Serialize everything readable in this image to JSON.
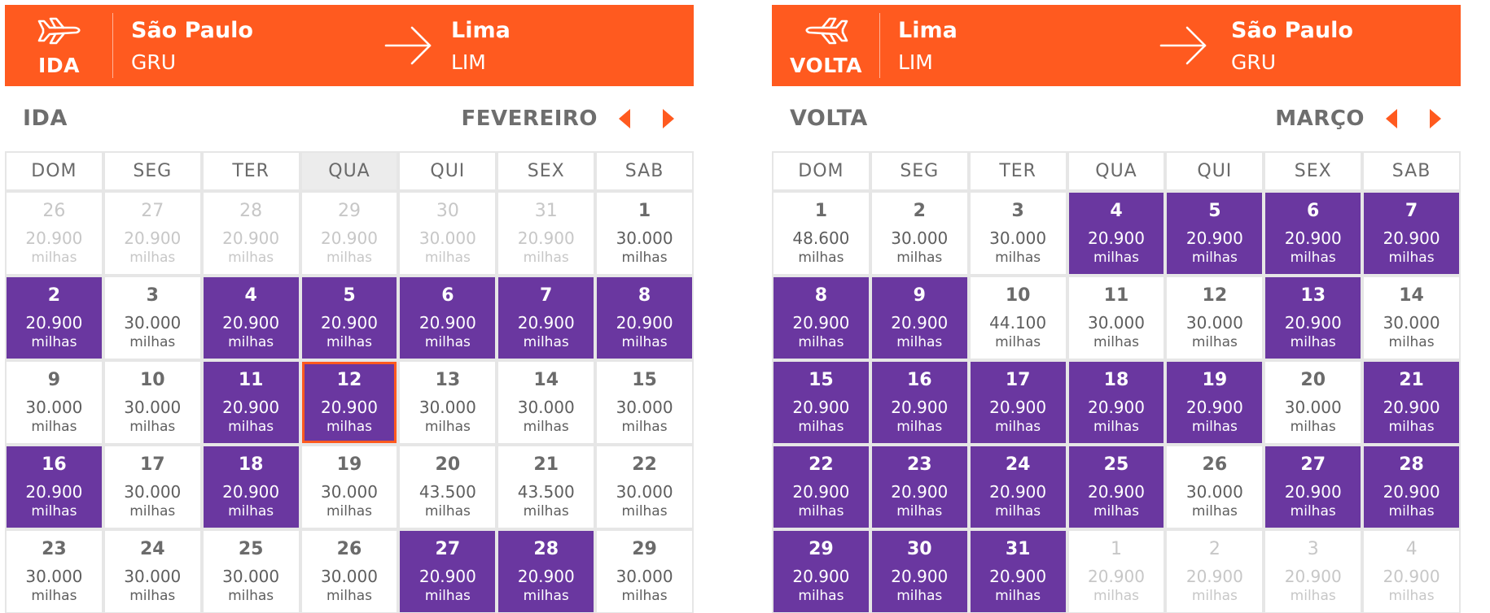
{
  "ida": {
    "direction_label": "IDA",
    "origin": {
      "city": "São Paulo",
      "code": "GRU"
    },
    "destination": {
      "city": "Lima",
      "code": "LIM"
    },
    "section_title": "IDA",
    "month": "FEVEREIRO",
    "weekdays": [
      "DOM",
      "SEG",
      "TER",
      "QUA",
      "QUI",
      "SEX",
      "SAB"
    ],
    "highlight_weekday": "QUA",
    "days": [
      {
        "day": "26",
        "price": "20.900",
        "unit": "milhas",
        "state": "muted"
      },
      {
        "day": "27",
        "price": "20.900",
        "unit": "milhas",
        "state": "muted"
      },
      {
        "day": "28",
        "price": "20.900",
        "unit": "milhas",
        "state": "muted"
      },
      {
        "day": "29",
        "price": "20.900",
        "unit": "milhas",
        "state": "muted"
      },
      {
        "day": "30",
        "price": "30.000",
        "unit": "milhas",
        "state": "muted"
      },
      {
        "day": "31",
        "price": "20.900",
        "unit": "milhas",
        "state": "muted"
      },
      {
        "day": "1",
        "price": "30.000",
        "unit": "milhas",
        "state": "normal"
      },
      {
        "day": "2",
        "price": "20.900",
        "unit": "milhas",
        "state": "promo"
      },
      {
        "day": "3",
        "price": "30.000",
        "unit": "milhas",
        "state": "normal"
      },
      {
        "day": "4",
        "price": "20.900",
        "unit": "milhas",
        "state": "promo"
      },
      {
        "day": "5",
        "price": "20.900",
        "unit": "milhas",
        "state": "promo"
      },
      {
        "day": "6",
        "price": "20.900",
        "unit": "milhas",
        "state": "promo"
      },
      {
        "day": "7",
        "price": "20.900",
        "unit": "milhas",
        "state": "promo"
      },
      {
        "day": "8",
        "price": "20.900",
        "unit": "milhas",
        "state": "promo"
      },
      {
        "day": "9",
        "price": "30.000",
        "unit": "milhas",
        "state": "normal"
      },
      {
        "day": "10",
        "price": "30.000",
        "unit": "milhas",
        "state": "normal"
      },
      {
        "day": "11",
        "price": "20.900",
        "unit": "milhas",
        "state": "promo"
      },
      {
        "day": "12",
        "price": "20.900",
        "unit": "milhas",
        "state": "promo",
        "selected": true
      },
      {
        "day": "13",
        "price": "30.000",
        "unit": "milhas",
        "state": "normal"
      },
      {
        "day": "14",
        "price": "30.000",
        "unit": "milhas",
        "state": "normal"
      },
      {
        "day": "15",
        "price": "30.000",
        "unit": "milhas",
        "state": "normal"
      },
      {
        "day": "16",
        "price": "20.900",
        "unit": "milhas",
        "state": "promo"
      },
      {
        "day": "17",
        "price": "30.000",
        "unit": "milhas",
        "state": "normal"
      },
      {
        "day": "18",
        "price": "20.900",
        "unit": "milhas",
        "state": "promo"
      },
      {
        "day": "19",
        "price": "30.000",
        "unit": "milhas",
        "state": "normal"
      },
      {
        "day": "20",
        "price": "43.500",
        "unit": "milhas",
        "state": "normal"
      },
      {
        "day": "21",
        "price": "43.500",
        "unit": "milhas",
        "state": "normal"
      },
      {
        "day": "22",
        "price": "30.000",
        "unit": "milhas",
        "state": "normal"
      },
      {
        "day": "23",
        "price": "30.000",
        "unit": "milhas",
        "state": "normal"
      },
      {
        "day": "24",
        "price": "30.000",
        "unit": "milhas",
        "state": "normal"
      },
      {
        "day": "25",
        "price": "30.000",
        "unit": "milhas",
        "state": "normal"
      },
      {
        "day": "26",
        "price": "30.000",
        "unit": "milhas",
        "state": "normal"
      },
      {
        "day": "27",
        "price": "20.900",
        "unit": "milhas",
        "state": "promo"
      },
      {
        "day": "28",
        "price": "20.900",
        "unit": "milhas",
        "state": "promo"
      },
      {
        "day": "29",
        "price": "30.000",
        "unit": "milhas",
        "state": "normal"
      }
    ]
  },
  "volta": {
    "direction_label": "VOLTA",
    "origin": {
      "city": "Lima",
      "code": "LIM"
    },
    "destination": {
      "city": "São Paulo",
      "code": "GRU"
    },
    "section_title": "VOLTA",
    "month": "MARÇO",
    "weekdays": [
      "DOM",
      "SEG",
      "TER",
      "QUA",
      "QUI",
      "SEX",
      "SAB"
    ],
    "highlight_weekday": "",
    "days": [
      {
        "day": "1",
        "price": "48.600",
        "unit": "milhas",
        "state": "normal"
      },
      {
        "day": "2",
        "price": "30.000",
        "unit": "milhas",
        "state": "normal"
      },
      {
        "day": "3",
        "price": "30.000",
        "unit": "milhas",
        "state": "normal"
      },
      {
        "day": "4",
        "price": "20.900",
        "unit": "milhas",
        "state": "promo"
      },
      {
        "day": "5",
        "price": "20.900",
        "unit": "milhas",
        "state": "promo"
      },
      {
        "day": "6",
        "price": "20.900",
        "unit": "milhas",
        "state": "promo"
      },
      {
        "day": "7",
        "price": "20.900",
        "unit": "milhas",
        "state": "promo"
      },
      {
        "day": "8",
        "price": "20.900",
        "unit": "milhas",
        "state": "promo"
      },
      {
        "day": "9",
        "price": "20.900",
        "unit": "milhas",
        "state": "promo"
      },
      {
        "day": "10",
        "price": "44.100",
        "unit": "milhas",
        "state": "normal"
      },
      {
        "day": "11",
        "price": "30.000",
        "unit": "milhas",
        "state": "normal"
      },
      {
        "day": "12",
        "price": "30.000",
        "unit": "milhas",
        "state": "normal"
      },
      {
        "day": "13",
        "price": "20.900",
        "unit": "milhas",
        "state": "promo"
      },
      {
        "day": "14",
        "price": "30.000",
        "unit": "milhas",
        "state": "normal"
      },
      {
        "day": "15",
        "price": "20.900",
        "unit": "milhas",
        "state": "promo"
      },
      {
        "day": "16",
        "price": "20.900",
        "unit": "milhas",
        "state": "promo"
      },
      {
        "day": "17",
        "price": "20.900",
        "unit": "milhas",
        "state": "promo"
      },
      {
        "day": "18",
        "price": "20.900",
        "unit": "milhas",
        "state": "promo"
      },
      {
        "day": "19",
        "price": "20.900",
        "unit": "milhas",
        "state": "promo"
      },
      {
        "day": "20",
        "price": "30.000",
        "unit": "milhas",
        "state": "normal"
      },
      {
        "day": "21",
        "price": "20.900",
        "unit": "milhas",
        "state": "promo"
      },
      {
        "day": "22",
        "price": "20.900",
        "unit": "milhas",
        "state": "promo"
      },
      {
        "day": "23",
        "price": "20.900",
        "unit": "milhas",
        "state": "promo"
      },
      {
        "day": "24",
        "price": "20.900",
        "unit": "milhas",
        "state": "promo"
      },
      {
        "day": "25",
        "price": "20.900",
        "unit": "milhas",
        "state": "promo"
      },
      {
        "day": "26",
        "price": "30.000",
        "unit": "milhas",
        "state": "normal"
      },
      {
        "day": "27",
        "price": "20.900",
        "unit": "milhas",
        "state": "promo"
      },
      {
        "day": "28",
        "price": "20.900",
        "unit": "milhas",
        "state": "promo"
      },
      {
        "day": "29",
        "price": "20.900",
        "unit": "milhas",
        "state": "promo"
      },
      {
        "day": "30",
        "price": "20.900",
        "unit": "milhas",
        "state": "promo"
      },
      {
        "day": "31",
        "price": "20.900",
        "unit": "milhas",
        "state": "promo"
      },
      {
        "day": "1",
        "price": "20.900",
        "unit": "milhas",
        "state": "muted"
      },
      {
        "day": "2",
        "price": "20.900",
        "unit": "milhas",
        "state": "muted"
      },
      {
        "day": "3",
        "price": "20.900",
        "unit": "milhas",
        "state": "muted"
      },
      {
        "day": "4",
        "price": "20.900",
        "unit": "milhas",
        "state": "muted"
      }
    ]
  },
  "colors": {
    "brand_orange": "#ff5a1f",
    "promo_purple": "#6a37a0"
  },
  "icons": {
    "plane": "airplane-icon",
    "arrow": "arrow-right-icon",
    "prev": "chevron-left-icon",
    "next": "chevron-right-icon"
  }
}
